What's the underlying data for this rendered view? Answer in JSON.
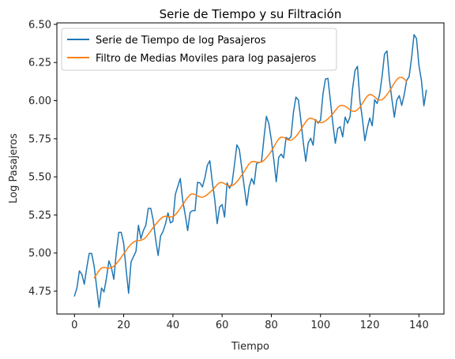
{
  "chart_data": {
    "type": "line",
    "title": "Serie de Tiempo y su Filtración",
    "xlabel": "Tiempo",
    "ylabel": "Log Pasajeros",
    "xlim": [
      -7.15,
      150.15
    ],
    "ylim": [
      4.6,
      6.51
    ],
    "xticks": [
      0,
      20,
      40,
      60,
      80,
      100,
      120,
      140
    ],
    "yticks": [
      4.75,
      5.0,
      5.25,
      5.5,
      5.75,
      6.0,
      6.25,
      6.5
    ],
    "ytick_labels": [
      "4.75",
      "5.00",
      "5.25",
      "5.50",
      "5.75",
      "6.00",
      "6.25",
      "6.50"
    ],
    "grid": false,
    "legend_position": "top-left",
    "series": [
      {
        "name": "Serie de Tiempo de log Pasajeros",
        "color": "#1f77b4",
        "x_start": 0,
        "values": [
          4.718,
          4.771,
          4.883,
          4.86,
          4.796,
          4.905,
          4.997,
          4.997,
          4.913,
          4.779,
          4.644,
          4.771,
          4.745,
          4.836,
          4.949,
          4.905,
          4.828,
          5.004,
          5.136,
          5.136,
          5.063,
          4.89,
          4.736,
          4.942,
          4.977,
          5.011,
          5.182,
          5.094,
          5.147,
          5.182,
          5.293,
          5.293,
          5.215,
          5.088,
          4.984,
          5.112,
          5.142,
          5.193,
          5.263,
          5.198,
          5.209,
          5.385,
          5.438,
          5.489,
          5.342,
          5.252,
          5.147,
          5.268,
          5.278,
          5.278,
          5.464,
          5.46,
          5.434,
          5.493,
          5.576,
          5.606,
          5.468,
          5.352,
          5.193,
          5.303,
          5.318,
          5.236,
          5.46,
          5.425,
          5.455,
          5.576,
          5.71,
          5.68,
          5.557,
          5.434,
          5.313,
          5.434,
          5.489,
          5.451,
          5.587,
          5.595,
          5.598,
          5.753,
          5.897,
          5.849,
          5.743,
          5.613,
          5.468,
          5.628,
          5.649,
          5.624,
          5.759,
          5.746,
          5.763,
          5.924,
          6.023,
          6.004,
          5.872,
          5.724,
          5.602,
          5.724,
          5.753,
          5.707,
          5.875,
          5.852,
          5.872,
          6.045,
          6.142,
          6.146,
          6.001,
          5.849,
          5.72,
          5.817,
          5.829,
          5.762,
          5.892,
          5.852,
          5.895,
          6.075,
          6.197,
          6.225,
          6.001,
          5.883,
          5.737,
          5.82,
          5.886,
          5.835,
          6.006,
          5.981,
          6.04,
          6.157,
          6.306,
          6.326,
          6.138,
          6.009,
          5.892,
          6.004,
          6.033,
          5.969,
          6.038,
          6.133,
          6.157,
          6.282,
          6.433,
          6.407,
          6.23,
          6.133,
          5.966,
          6.068
        ]
      },
      {
        "name": "Filtro de Medias Moviles para log pasajeros",
        "color": "#ff7f0e",
        "x_start": 8,
        "values": [
          4.838,
          4.86,
          4.885,
          4.902,
          4.906,
          4.903,
          4.901,
          4.904,
          4.914,
          4.93,
          4.95,
          4.972,
          4.995,
          5.018,
          5.04,
          5.058,
          5.072,
          5.08,
          5.082,
          5.084,
          5.09,
          5.103,
          5.123,
          5.146,
          5.168,
          5.188,
          5.207,
          5.225,
          5.238,
          5.241,
          5.238,
          5.236,
          5.239,
          5.251,
          5.271,
          5.294,
          5.317,
          5.342,
          5.365,
          5.383,
          5.389,
          5.384,
          5.375,
          5.368,
          5.366,
          5.372,
          5.384,
          5.398,
          5.412,
          5.43,
          5.449,
          5.462,
          5.463,
          5.455,
          5.445,
          5.44,
          5.442,
          5.451,
          5.467,
          5.488,
          5.512,
          5.535,
          5.562,
          5.586,
          5.6,
          5.601,
          5.597,
          5.594,
          5.597,
          5.608,
          5.625,
          5.646,
          5.668,
          5.696,
          5.724,
          5.749,
          5.761,
          5.758,
          5.749,
          5.741,
          5.74,
          5.749,
          5.765,
          5.786,
          5.81,
          5.837,
          5.861,
          5.88,
          5.885,
          5.88,
          5.87,
          5.86,
          5.855,
          5.858,
          5.867,
          5.88,
          5.896,
          5.914,
          5.935,
          5.955,
          5.968,
          5.969,
          5.963,
          5.952,
          5.939,
          5.93,
          5.93,
          5.94,
          5.957,
          5.981,
          6.007,
          6.03,
          6.041,
          6.037,
          6.024,
          6.01,
          6.003,
          6.006,
          6.02,
          6.04,
          6.062,
          6.088,
          6.116,
          6.139,
          6.152,
          6.152,
          6.142,
          6.126
        ]
      }
    ]
  }
}
